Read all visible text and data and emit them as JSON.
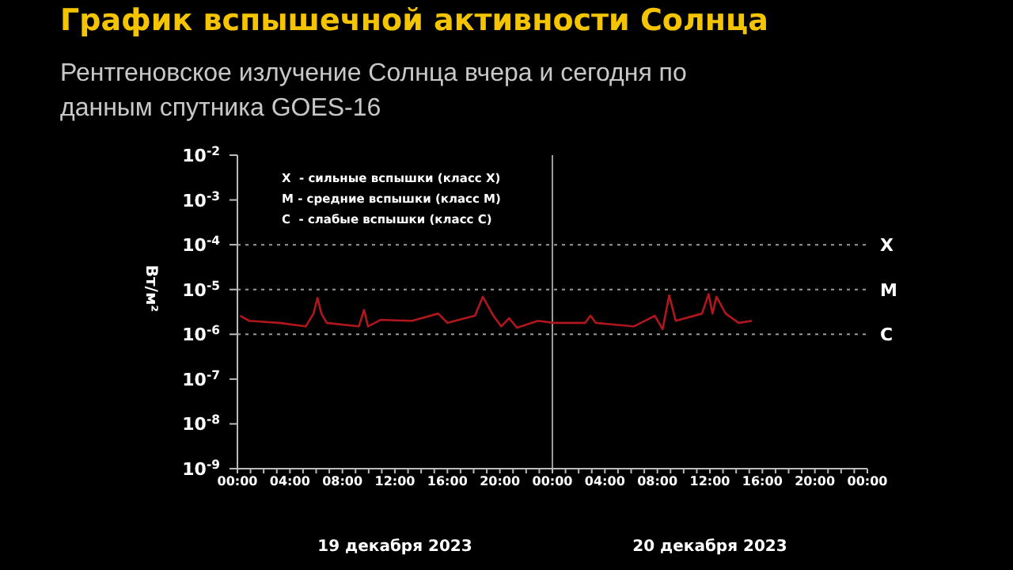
{
  "chart_data": {
    "type": "line",
    "title": "График вспышечной активности Солнца",
    "subtitle": "Рентгеновское излучение Солнца вчера и сегодня по данным спутника GOES-16",
    "ylabel": "Вт/м²",
    "annotations": [
      "X  - сильные вспышки (класс X)",
      "M - средние вспышки (класс M)",
      "C  - слабые вспышки (класс C)",
      "19 декабря 2023",
      "20 декабря 2023"
    ],
    "x": [
      "2023-12-19T00:12",
      "2023-12-19T00:54",
      "2023-12-19T03:12",
      "2023-12-19T05:12",
      "2023-12-19T05:48",
      "2023-12-19T06:06",
      "2023-12-19T06:24",
      "2023-12-19T06:48",
      "2023-12-19T09:15",
      "2023-12-19T09:39",
      "2023-12-19T09:57",
      "2023-12-19T10:54",
      "2023-12-19T13:18",
      "2023-12-19T15:18",
      "2023-12-19T16:00",
      "2023-12-19T18:06",
      "2023-12-19T18:42",
      "2023-12-19T19:30",
      "2023-12-19T20:06",
      "2023-12-19T20:42",
      "2023-12-19T21:18",
      "2023-12-19T22:54",
      "2023-12-20T00:06",
      "2023-12-20T02:30",
      "2023-12-20T02:54",
      "2023-12-20T03:18",
      "2023-12-20T06:12",
      "2023-12-20T07:48",
      "2023-12-20T08:24",
      "2023-12-20T08:54",
      "2023-12-20T09:24",
      "2023-12-20T11:24",
      "2023-12-20T11:54",
      "2023-12-20T12:12",
      "2023-12-20T12:30",
      "2023-12-20T13:12",
      "2023-12-20T14:12",
      "2023-12-20T15:12"
    ],
    "series": [
      {
        "color": "#b0171c",
        "values": [
          2.6e-06,
          2e-06,
          1.8e-06,
          1.5e-06,
          2.9e-06,
          6.5e-06,
          2.9e-06,
          1.8e-06,
          1.5e-06,
          3.5e-06,
          1.5e-06,
          2.1e-06,
          2e-06,
          2.9e-06,
          1.8e-06,
          2.6e-06,
          6.9e-06,
          2.6e-06,
          1.5e-06,
          2.3e-06,
          1.4e-06,
          2e-06,
          1.8e-06,
          1.8e-06,
          2.6e-06,
          1.8e-06,
          1.5e-06,
          2.6e-06,
          1.3e-06,
          7.4e-06,
          2e-06,
          2.9e-06,
          7.9e-06,
          2.9e-06,
          6.9e-06,
          2.9e-06,
          1.8e-06,
          2e-06
        ]
      }
    ],
    "log": "y",
    "marker": "none",
    "line_style": "solid",
    "xlim": [
      "2023-12-19T00:00",
      "2023-12-21T00:00"
    ],
    "xticks": [
      {
        "value": "2023-12-19T00:00",
        "label": "00:00"
      },
      {
        "value": "2023-12-19T01:00",
        "label": null
      },
      {
        "value": "2023-12-19T02:00",
        "label": null
      },
      {
        "value": "2023-12-19T03:00",
        "label": null
      },
      {
        "value": "2023-12-19T04:00",
        "label": "04:00"
      },
      {
        "value": "2023-12-19T05:00",
        "label": null
      },
      {
        "value": "2023-12-19T06:00",
        "label": null
      },
      {
        "value": "2023-12-19T07:00",
        "label": null
      },
      {
        "value": "2023-12-19T08:00",
        "label": "08:00"
      },
      {
        "value": "2023-12-19T09:00",
        "label": null
      },
      {
        "value": "2023-12-19T10:00",
        "label": null
      },
      {
        "value": "2023-12-19T11:00",
        "label": null
      },
      {
        "value": "2023-12-19T12:00",
        "label": "12:00"
      },
      {
        "value": "2023-12-19T13:00",
        "label": null
      },
      {
        "value": "2023-12-19T14:00",
        "label": null
      },
      {
        "value": "2023-12-19T15:00",
        "label": null
      },
      {
        "value": "2023-12-19T16:00",
        "label": "16:00"
      },
      {
        "value": "2023-12-19T17:00",
        "label": null
      },
      {
        "value": "2023-12-19T18:00",
        "label": null
      },
      {
        "value": "2023-12-19T19:00",
        "label": null
      },
      {
        "value": "2023-12-19T20:00",
        "label": "20:00"
      },
      {
        "value": "2023-12-19T21:00",
        "label": null
      },
      {
        "value": "2023-12-19T22:00",
        "label": null
      },
      {
        "value": "2023-12-19T23:00",
        "label": null
      },
      {
        "value": "2023-12-20T00:00",
        "label": "00:00"
      },
      {
        "value": "2023-12-20T01:00",
        "label": null
      },
      {
        "value": "2023-12-20T02:00",
        "label": null
      },
      {
        "value": "2023-12-20T03:00",
        "label": null
      },
      {
        "value": "2023-12-20T04:00",
        "label": "04:00"
      },
      {
        "value": "2023-12-20T05:00",
        "label": null
      },
      {
        "value": "2023-12-20T06:00",
        "label": null
      },
      {
        "value": "2023-12-20T07:00",
        "label": null
      },
      {
        "value": "2023-12-20T08:00",
        "label": "08:00"
      },
      {
        "value": "2023-12-20T09:00",
        "label": null
      },
      {
        "value": "2023-12-20T10:00",
        "label": null
      },
      {
        "value": "2023-12-20T11:00",
        "label": null
      },
      {
        "value": "2023-12-20T12:00",
        "label": "12:00"
      },
      {
        "value": "2023-12-20T13:00",
        "label": null
      },
      {
        "value": "2023-12-20T14:00",
        "label": null
      },
      {
        "value": "2023-12-20T15:00",
        "label": null
      },
      {
        "value": "2023-12-20T16:00",
        "label": "16:00"
      },
      {
        "value": "2023-12-20T17:00",
        "label": null
      },
      {
        "value": "2023-12-20T18:00",
        "label": null
      },
      {
        "value": "2023-12-20T19:00",
        "label": null
      },
      {
        "value": "2023-12-20T20:00",
        "label": "20:00"
      },
      {
        "value": "2023-12-20T21:00",
        "label": null
      },
      {
        "value": "2023-12-20T22:00",
        "label": null
      },
      {
        "value": "2023-12-20T23:00",
        "label": null
      },
      {
        "value": "2023-12-21T00:00",
        "label": "00:00"
      }
    ],
    "ylim": [
      1e-09,
      0.01
    ],
    "yticks": [
      {
        "value": 1e-09,
        "label": "10$^{-9}$"
      },
      {
        "value": 1e-08,
        "label": "10$^{-8}$"
      },
      {
        "value": 1e-07,
        "label": "10$^{-7}$"
      },
      {
        "value": 1e-06,
        "label": "10$^{-6}$"
      },
      {
        "value": 1e-05,
        "label": "10$^{-5}$"
      },
      {
        "value": 0.0001,
        "label": "10$^{-4}$"
      },
      {
        "value": 0.001,
        "label": "10$^{-3}$"
      },
      {
        "value": 0.01,
        "label": "10$^{-2}$"
      }
    ],
    "ref_lines": [
      {
        "axis": "y",
        "value": 0.0001,
        "label": "X",
        "color": "#9a9a9a",
        "line_style": "dotted"
      },
      {
        "axis": "y",
        "value": 1e-05,
        "label": "M",
        "color": "#9a9a9a",
        "line_style": "dotted"
      },
      {
        "axis": "y",
        "value": 1e-06,
        "label": "C",
        "color": "#9a9a9a",
        "line_style": "dotted"
      },
      {
        "axis": "x",
        "value": "2023-12-20T00:00",
        "color": "#9a9a9a",
        "line_style": "solid"
      }
    ]
  }
}
